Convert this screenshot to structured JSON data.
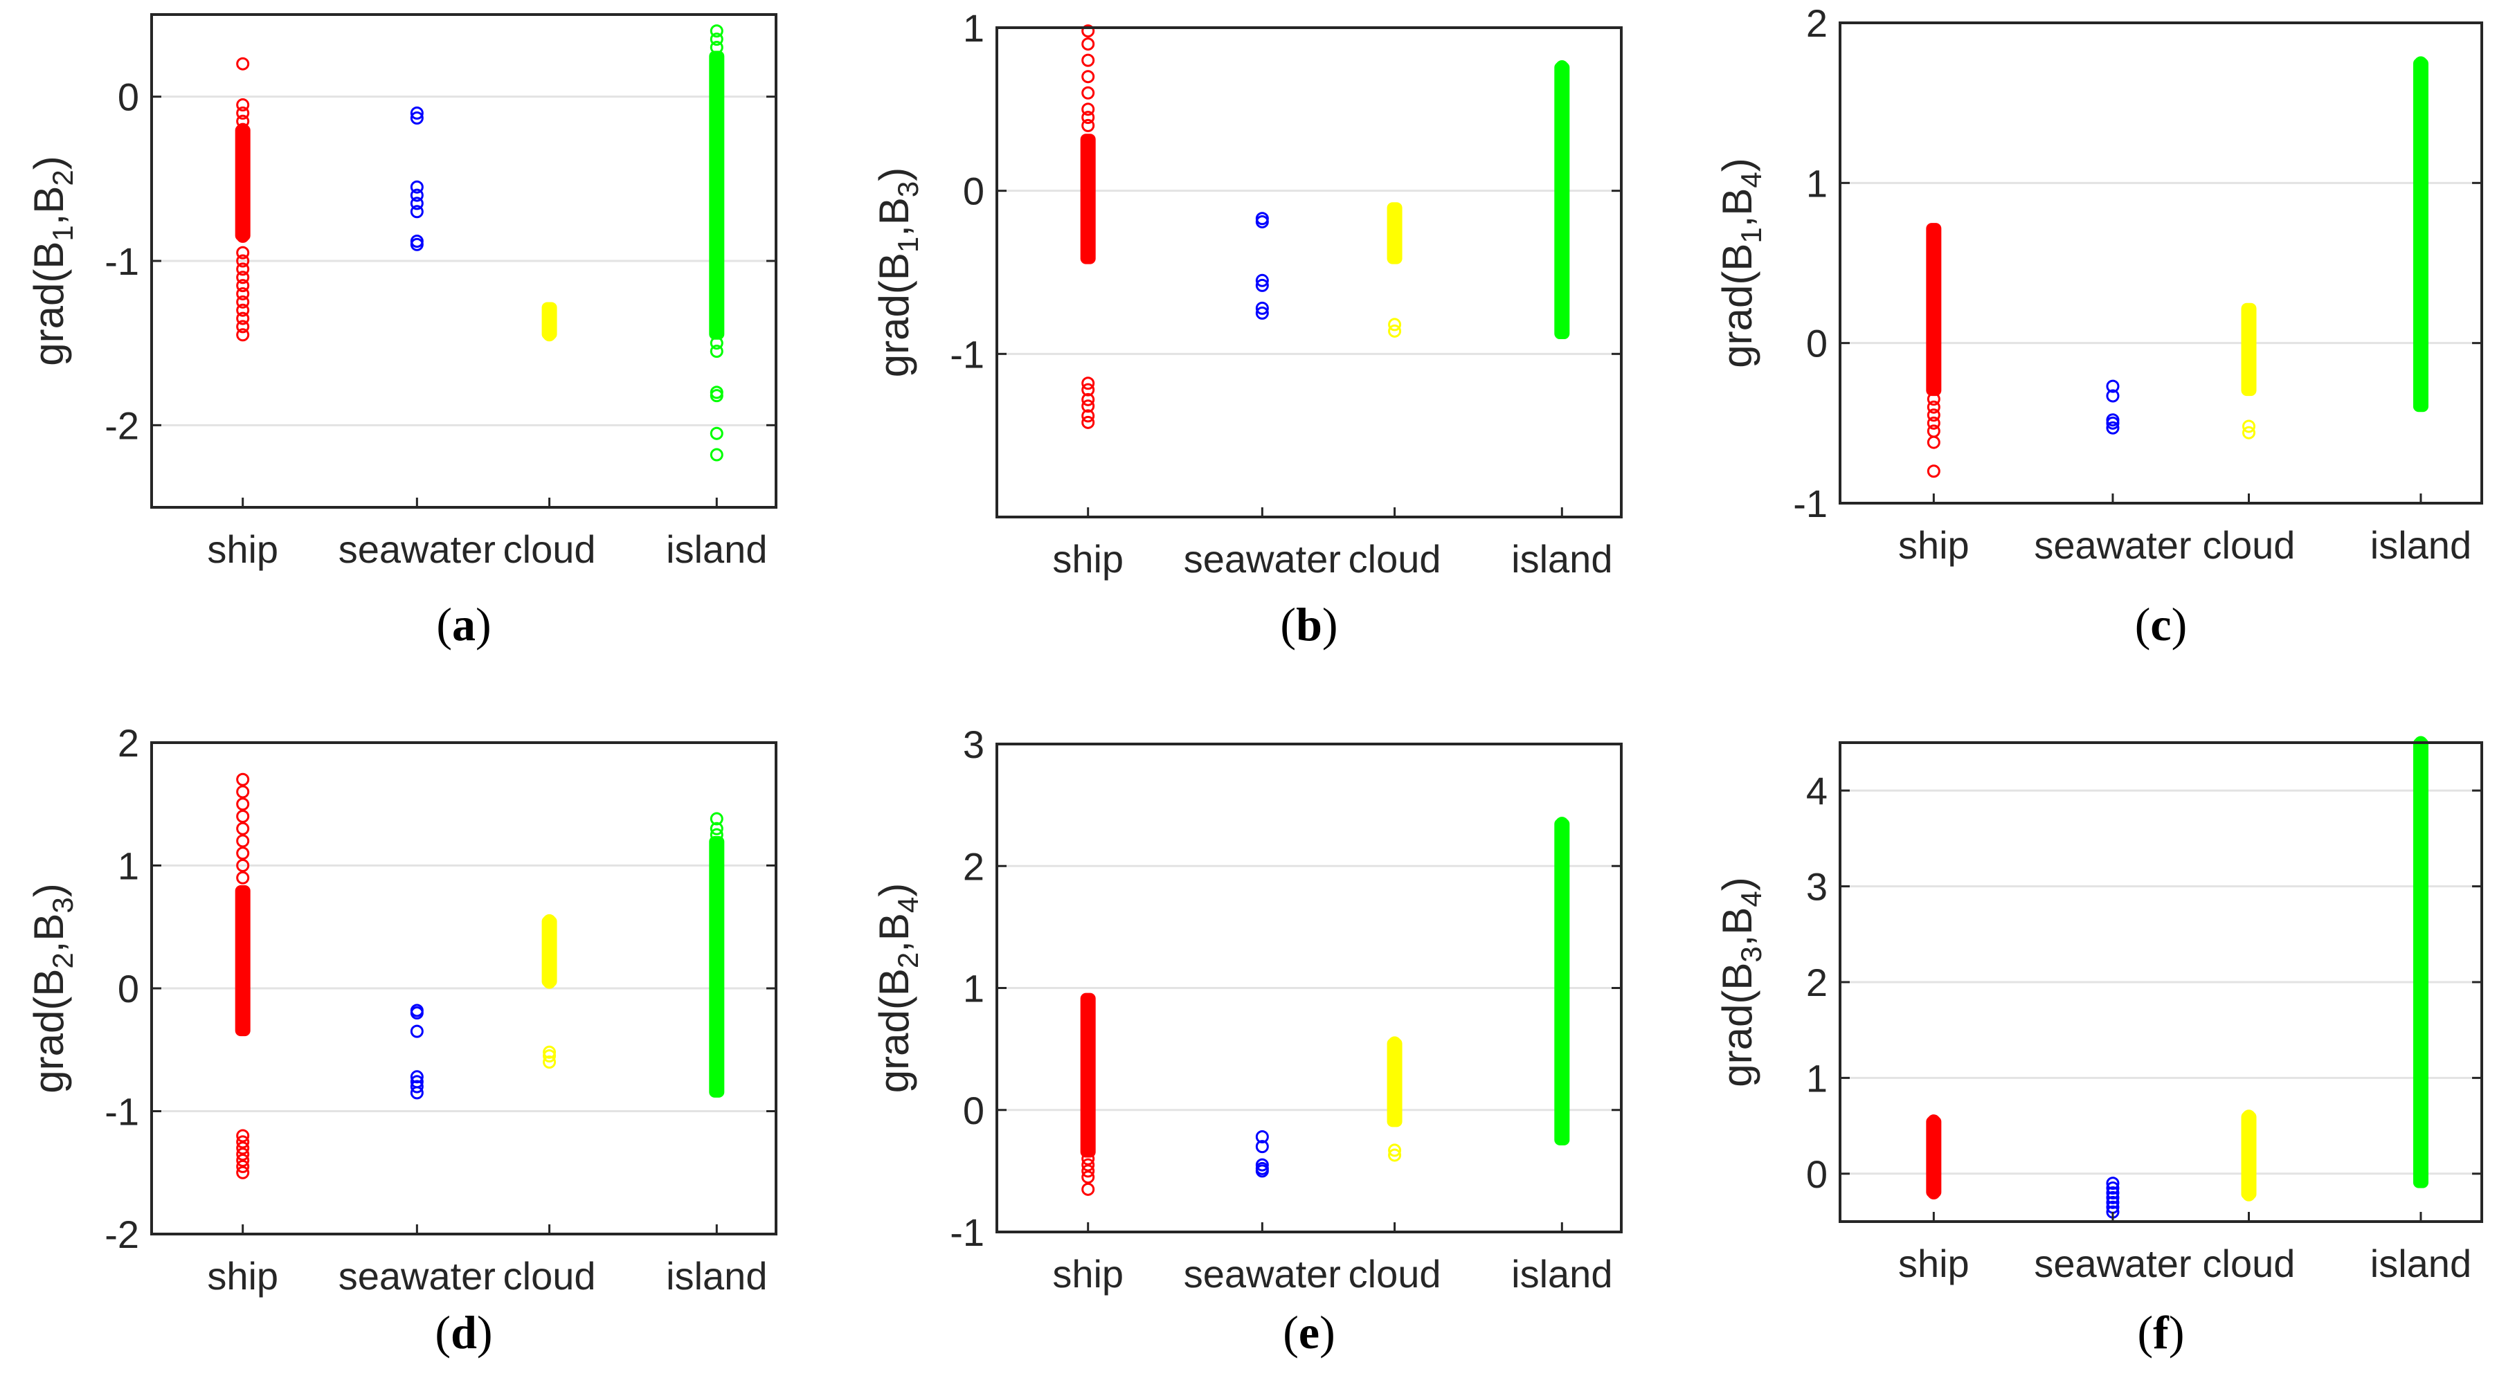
{
  "chart_data": [
    {
      "type": "scatter",
      "panel_label": "a",
      "ylabel": {
        "func": "grad",
        "args": [
          "1",
          "2"
        ]
      },
      "ylim": [
        -2.5,
        0.5
      ],
      "yticks": [
        -2,
        -1,
        0
      ],
      "categories": [
        "ship",
        "seawater",
        "cloud",
        "island"
      ],
      "grid": "horizontal",
      "series": [
        {
          "name": "ship",
          "color": "#ff0000",
          "points": [
            0.2,
            -0.05,
            -0.1,
            -0.15,
            -0.2,
            -0.25,
            -0.3,
            -0.35,
            -0.4,
            -0.45,
            -0.5,
            -0.55,
            -0.6,
            -0.65,
            -0.7,
            -0.75,
            -0.8,
            -0.85,
            -0.95,
            -1.0,
            -1.05,
            -1.1,
            -1.15,
            -1.2,
            -1.25,
            -1.3,
            -1.35,
            -1.4,
            -1.45
          ],
          "ranges": [
            [
              -0.85,
              -0.2
            ]
          ]
        },
        {
          "name": "seawater",
          "color": "#0000ff",
          "points": [
            -0.1,
            -0.13,
            -0.55,
            -0.6,
            -0.65,
            -0.7,
            -0.88,
            -0.9
          ],
          "ranges": []
        },
        {
          "name": "cloud",
          "color": "#ffff00",
          "points": [
            -1.3,
            -1.35,
            -1.4,
            -1.45
          ],
          "ranges": [
            [
              -1.45,
              -1.28
            ]
          ]
        },
        {
          "name": "island",
          "color": "#00ff00",
          "points": [
            0.4,
            0.35,
            0.3,
            -1.5,
            -1.55,
            -1.8,
            -1.82,
            -2.05,
            -2.18
          ],
          "ranges": [
            [
              -1.45,
              0.25
            ]
          ]
        }
      ]
    },
    {
      "type": "scatter",
      "panel_label": "b",
      "ylabel": {
        "func": "grad",
        "args": [
          "1",
          "3"
        ]
      },
      "ylim": [
        -2,
        1
      ],
      "yticks": [
        -1,
        0,
        1
      ],
      "categories": [
        "ship",
        "seawater",
        "cloud",
        "island"
      ],
      "grid": "horizontal",
      "series": [
        {
          "name": "ship",
          "color": "#ff0000",
          "points": [
            0.98,
            0.9,
            0.8,
            0.7,
            0.6,
            0.5,
            0.45,
            0.4,
            -1.18,
            -1.22,
            -1.28,
            -1.32,
            -1.38,
            -1.42
          ],
          "ranges": [
            [
              -0.42,
              0.32
            ]
          ]
        },
        {
          "name": "seawater",
          "color": "#0000ff",
          "points": [
            -0.17,
            -0.19,
            -0.55,
            -0.58,
            -0.72,
            -0.75
          ],
          "ranges": []
        },
        {
          "name": "cloud",
          "color": "#ffff00",
          "points": [
            -0.12,
            -0.2,
            -0.3,
            -0.4,
            -0.82,
            -0.86
          ],
          "ranges": [
            [
              -0.42,
              -0.1
            ]
          ]
        },
        {
          "name": "island",
          "color": "#00ff00",
          "points": [
            0.76,
            0.72
          ],
          "ranges": [
            [
              -0.88,
              0.76
            ]
          ]
        }
      ]
    },
    {
      "type": "scatter",
      "panel_label": "c",
      "ylabel": {
        "func": "grad",
        "args": [
          "1",
          "4"
        ]
      },
      "ylim": [
        -1,
        2
      ],
      "yticks": [
        -1,
        0,
        1,
        2
      ],
      "categories": [
        "ship",
        "seawater",
        "cloud",
        "island"
      ],
      "grid": "horizontal",
      "series": [
        {
          "name": "ship",
          "color": "#ff0000",
          "points": [
            0.7,
            0.65,
            0.6,
            -0.35,
            -0.4,
            -0.45,
            -0.5,
            -0.55,
            -0.62,
            -0.8
          ],
          "ranges": [
            [
              -0.3,
              0.72
            ]
          ]
        },
        {
          "name": "seawater",
          "color": "#0000ff",
          "points": [
            -0.27,
            -0.33,
            -0.48,
            -0.5,
            -0.53
          ],
          "ranges": []
        },
        {
          "name": "cloud",
          "color": "#ffff00",
          "points": [
            0.2,
            0.15,
            -0.52,
            -0.56
          ],
          "ranges": [
            [
              -0.3,
              0.22
            ]
          ]
        },
        {
          "name": "island",
          "color": "#00ff00",
          "points": [
            1.75
          ],
          "ranges": [
            [
              -0.4,
              1.75
            ]
          ]
        }
      ]
    },
    {
      "type": "scatter",
      "panel_label": "d",
      "ylabel": {
        "func": "grad",
        "args": [
          "2",
          "3"
        ]
      },
      "ylim": [
        -2,
        2
      ],
      "yticks": [
        -2,
        -1,
        0,
        1,
        2
      ],
      "categories": [
        "ship",
        "seawater",
        "cloud",
        "island"
      ],
      "grid": "horizontal",
      "series": [
        {
          "name": "ship",
          "color": "#ff0000",
          "points": [
            1.7,
            1.6,
            1.5,
            1.4,
            1.3,
            1.2,
            1.1,
            1.0,
            0.9,
            -1.2,
            -1.25,
            -1.3,
            -1.35,
            -1.4,
            -1.45,
            -1.5
          ],
          "ranges": [
            [
              -0.35,
              0.8
            ]
          ]
        },
        {
          "name": "seawater",
          "color": "#0000ff",
          "points": [
            -0.18,
            -0.2,
            -0.35,
            -0.72,
            -0.76,
            -0.8,
            -0.85
          ],
          "ranges": []
        },
        {
          "name": "cloud",
          "color": "#ffff00",
          "points": [
            0.55,
            0.5,
            0.45,
            0.3,
            0.25,
            0.1,
            0.05,
            -0.52,
            -0.55,
            -0.6
          ],
          "ranges": [
            [
              0.05,
              0.55
            ]
          ]
        },
        {
          "name": "island",
          "color": "#00ff00",
          "points": [
            1.38,
            1.3,
            1.25
          ],
          "ranges": [
            [
              -0.85,
              1.2
            ]
          ]
        }
      ]
    },
    {
      "type": "scatter",
      "panel_label": "e",
      "ylabel": {
        "func": "grad",
        "args": [
          "2",
          "4"
        ]
      },
      "ylim": [
        -1,
        3
      ],
      "yticks": [
        -1,
        0,
        1,
        2,
        3
      ],
      "categories": [
        "ship",
        "seawater",
        "cloud",
        "island"
      ],
      "grid": "horizontal",
      "series": [
        {
          "name": "ship",
          "color": "#ff0000",
          "points": [
            0.9,
            0.85,
            -0.4,
            -0.45,
            -0.5,
            -0.55,
            -0.65
          ],
          "ranges": [
            [
              -0.35,
              0.92
            ]
          ]
        },
        {
          "name": "seawater",
          "color": "#0000ff",
          "points": [
            -0.22,
            -0.3,
            -0.45,
            -0.48,
            -0.5
          ],
          "ranges": []
        },
        {
          "name": "cloud",
          "color": "#ffff00",
          "points": [
            0.55,
            0.5,
            -0.33,
            -0.37
          ],
          "ranges": [
            [
              -0.1,
              0.55
            ]
          ]
        },
        {
          "name": "island",
          "color": "#00ff00",
          "points": [
            2.35
          ],
          "ranges": [
            [
              -0.25,
              2.35
            ]
          ]
        }
      ]
    },
    {
      "type": "scatter",
      "panel_label": "f",
      "ylabel": {
        "func": "grad",
        "args": [
          "3",
          "4"
        ]
      },
      "ylim": [
        -0.5,
        4.5
      ],
      "yticks": [
        0,
        1,
        2,
        3,
        4
      ],
      "categories": [
        "ship",
        "seawater",
        "cloud",
        "island"
      ],
      "grid": "horizontal",
      "series": [
        {
          "name": "ship",
          "color": "#ff0000",
          "points": [
            0.55,
            -0.2
          ],
          "ranges": [
            [
              -0.2,
              0.55
            ]
          ]
        },
        {
          "name": "seawater",
          "color": "#0000ff",
          "points": [
            -0.1,
            -0.15,
            -0.2,
            -0.25,
            -0.3,
            -0.35,
            -0.4
          ],
          "ranges": []
        },
        {
          "name": "cloud",
          "color": "#ffff00",
          "points": [
            0.6,
            -0.22
          ],
          "ranges": [
            [
              -0.22,
              0.6
            ]
          ]
        },
        {
          "name": "island",
          "color": "#00ff00",
          "points": [
            4.5
          ],
          "ranges": [
            [
              -0.1,
              4.5
            ]
          ]
        }
      ]
    }
  ]
}
